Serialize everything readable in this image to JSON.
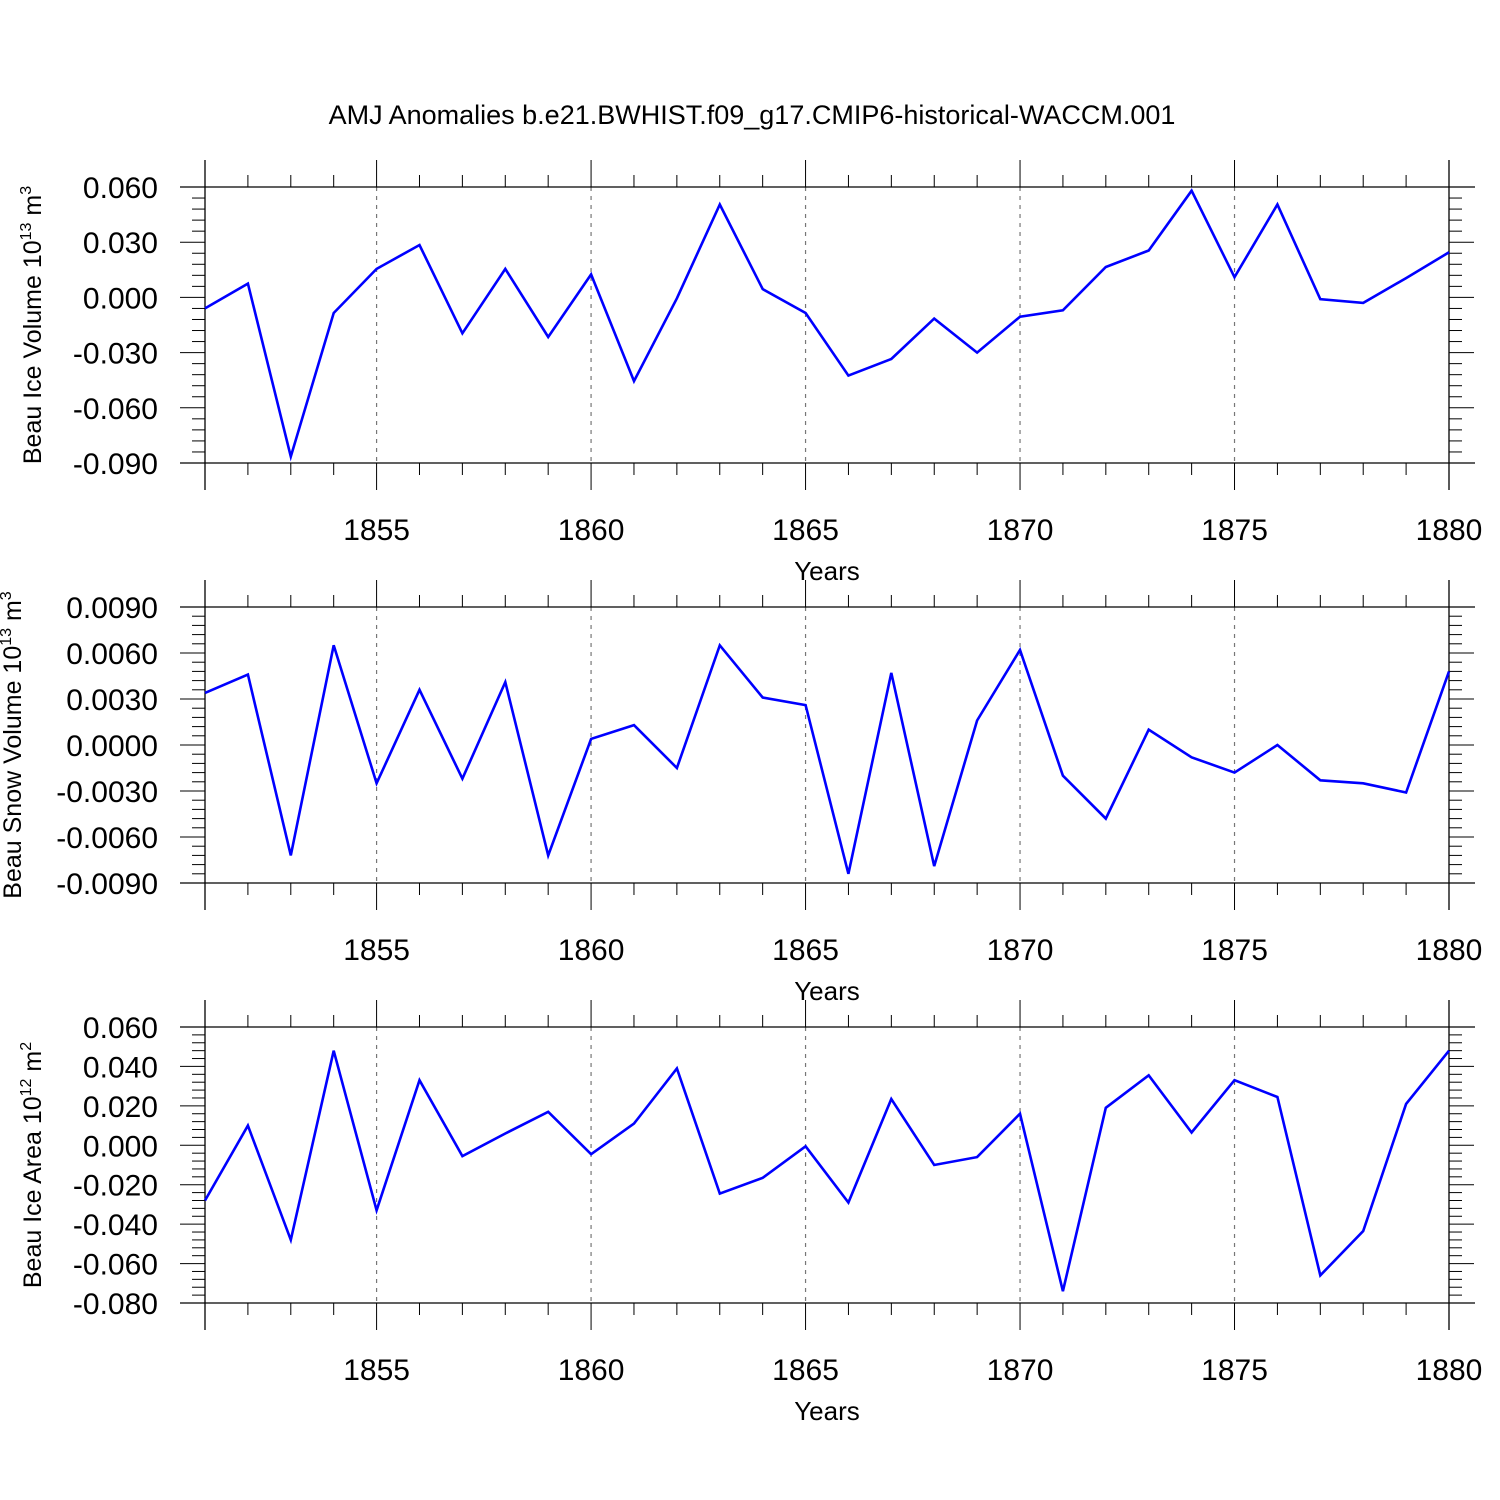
{
  "title": "AMJ Anomalies b.e21.BWHIST.f09_g17.CMIP6-historical-WACCM.001",
  "line_color": "#0000ff",
  "chart_data": [
    {
      "type": "line",
      "ylabel_main": "Beau Ice Volume 10",
      "ylabel_sup1": "13",
      "ylabel_unit": " m",
      "ylabel_sup2": "3",
      "xlabel": "Years",
      "xlim": [
        1851,
        1880
      ],
      "ylim": [
        -0.09,
        0.06
      ],
      "xticks": [
        1855,
        1860,
        1865,
        1870,
        1875,
        1880
      ],
      "yticks": [
        -0.09,
        -0.06,
        -0.03,
        0.0,
        0.03,
        0.06
      ],
      "ytick_labels": [
        "-0.090",
        "-0.060",
        "-0.030",
        "0.000",
        "0.030",
        "0.060"
      ],
      "yminor_step": 0.006,
      "x": [
        1851,
        1852,
        1853,
        1854,
        1855,
        1856,
        1857,
        1858,
        1859,
        1860,
        1861,
        1862,
        1863,
        1864,
        1865,
        1866,
        1867,
        1868,
        1869,
        1870,
        1871,
        1872,
        1873,
        1874,
        1875,
        1876,
        1877,
        1878,
        1879,
        1880
      ],
      "values": [
        -0.006,
        0.0075,
        -0.0865,
        -0.0085,
        0.0155,
        0.0285,
        -0.0195,
        0.0155,
        -0.0215,
        0.0125,
        -0.0455,
        -0.0005,
        0.0505,
        0.0045,
        -0.0085,
        -0.0425,
        -0.0335,
        -0.0115,
        -0.03,
        -0.0105,
        -0.007,
        0.0165,
        0.0255,
        0.058,
        0.011,
        0.0505,
        -0.001,
        -0.003,
        0.0105,
        0.0245
      ]
    },
    {
      "type": "line",
      "ylabel_main": "Beau Snow Volume 10",
      "ylabel_sup1": "13",
      "ylabel_unit": " m",
      "ylabel_sup2": "3",
      "xlabel": "Years",
      "xlim": [
        1851,
        1880
      ],
      "ylim": [
        -0.009,
        0.009
      ],
      "xticks": [
        1855,
        1860,
        1865,
        1870,
        1875,
        1880
      ],
      "yticks": [
        -0.009,
        -0.006,
        -0.003,
        0.0,
        0.003,
        0.006,
        0.009
      ],
      "ytick_labels": [
        "-0.0090",
        "-0.0060",
        "-0.0030",
        "0.0000",
        "0.0030",
        "0.0060",
        "0.0090"
      ],
      "yminor_step": 0.0006,
      "x": [
        1851,
        1852,
        1853,
        1854,
        1855,
        1856,
        1857,
        1858,
        1859,
        1860,
        1861,
        1862,
        1863,
        1864,
        1865,
        1866,
        1867,
        1868,
        1869,
        1870,
        1871,
        1872,
        1873,
        1874,
        1875,
        1876,
        1877,
        1878,
        1879,
        1880
      ],
      "values": [
        0.0034,
        0.0046,
        -0.0072,
        0.0065,
        -0.0025,
        0.0036,
        -0.0022,
        0.0041,
        -0.0072,
        0.0004,
        0.0013,
        -0.0015,
        0.0065,
        0.0031,
        0.0026,
        -0.0084,
        0.0047,
        -0.0079,
        0.0016,
        0.0062,
        -0.002,
        -0.0048,
        0.001,
        -0.0008,
        -0.0018,
        0.0,
        -0.0023,
        -0.0025,
        -0.0031,
        0.0048
      ]
    },
    {
      "type": "line",
      "ylabel_main": "Beau Ice Area 10",
      "ylabel_sup1": "12",
      "ylabel_unit": " m",
      "ylabel_sup2": "2",
      "xlabel": "Years",
      "xlim": [
        1851,
        1880
      ],
      "ylim": [
        -0.08,
        0.06
      ],
      "xticks": [
        1855,
        1860,
        1865,
        1870,
        1875,
        1880
      ],
      "yticks": [
        -0.08,
        -0.06,
        -0.04,
        -0.02,
        0.0,
        0.02,
        0.04,
        0.06
      ],
      "ytick_labels": [
        "-0.080",
        "-0.060",
        "-0.040",
        "-0.020",
        "0.000",
        "0.020",
        "0.040",
        "0.060"
      ],
      "yminor_step": 0.004,
      "x": [
        1851,
        1852,
        1853,
        1854,
        1855,
        1856,
        1857,
        1858,
        1859,
        1860,
        1861,
        1862,
        1863,
        1864,
        1865,
        1866,
        1867,
        1868,
        1869,
        1870,
        1871,
        1872,
        1873,
        1874,
        1875,
        1876,
        1877,
        1878,
        1879,
        1880
      ],
      "values": [
        -0.028,
        0.01,
        -0.048,
        0.048,
        -0.033,
        0.033,
        -0.0055,
        0.006,
        0.017,
        -0.0045,
        0.011,
        0.039,
        -0.0245,
        -0.0165,
        -0.0005,
        -0.029,
        0.0235,
        -0.01,
        -0.006,
        0.016,
        -0.074,
        0.019,
        0.0355,
        0.0065,
        0.033,
        0.0245,
        -0.066,
        -0.0435,
        0.021,
        0.048
      ]
    }
  ]
}
